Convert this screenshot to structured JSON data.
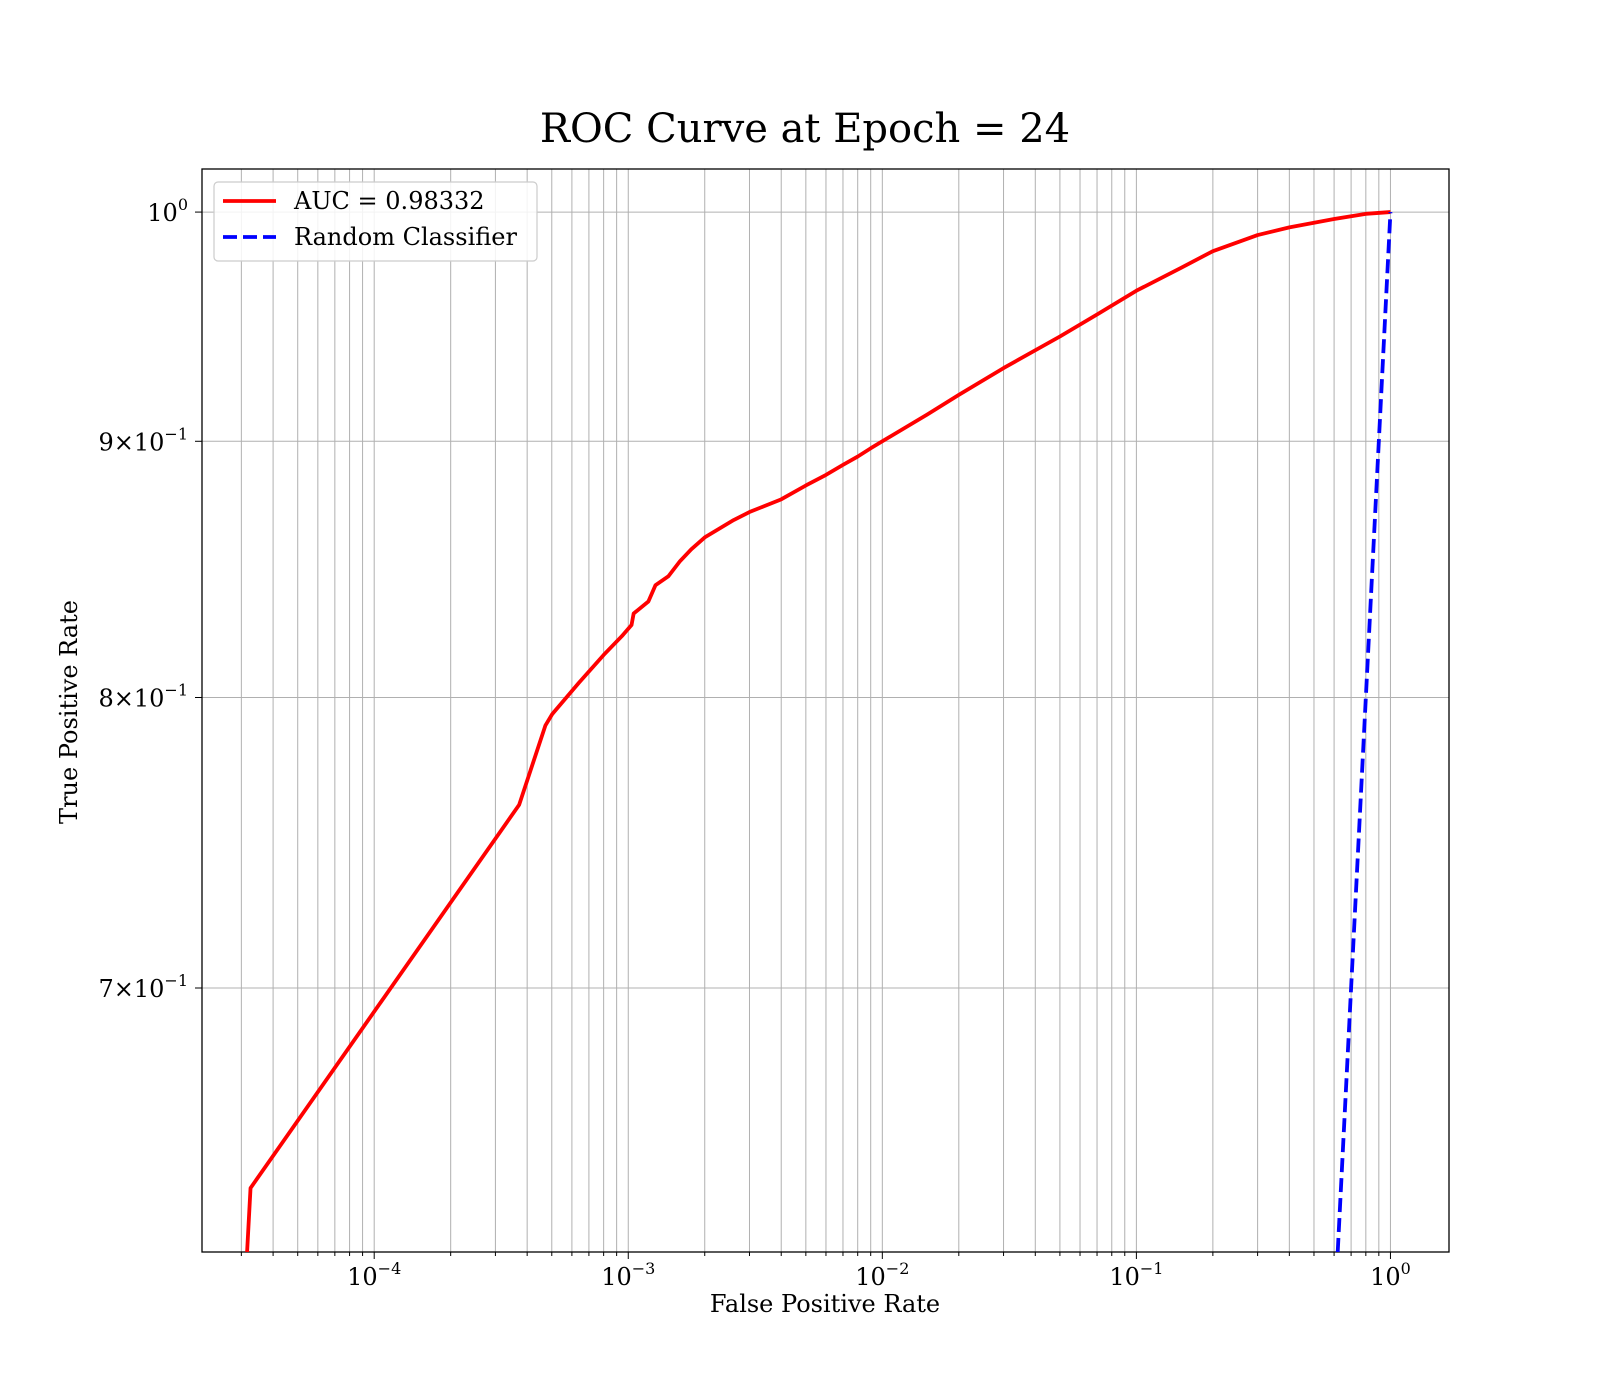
{
  "chart_data": {
    "type": "line",
    "title": "ROC Curve at Epoch = 24",
    "xlabel": "False Positive Rate",
    "ylabel": "True Positive Rate",
    "xscale": "log",
    "yscale": "log",
    "xlim": [
      2.1e-05,
      1.7
    ],
    "ylim": [
      0.62,
      1.02
    ],
    "grid": "both (major and minor)",
    "legend_position": "upper-left",
    "x_ticks": [
      {
        "value": 0.0001,
        "mantissa": "",
        "base": "10",
        "exp": "−4"
      },
      {
        "value": 0.001,
        "mantissa": "",
        "base": "10",
        "exp": "−3"
      },
      {
        "value": 0.01,
        "mantissa": "",
        "base": "10",
        "exp": "−2"
      },
      {
        "value": 0.1,
        "mantissa": "",
        "base": "10",
        "exp": "−1"
      },
      {
        "value": 1,
        "mantissa": "",
        "base": "10",
        "exp": "0"
      }
    ],
    "y_ticks": [
      {
        "value": 1.0,
        "mantissa": "",
        "base": "10",
        "exp": "0"
      },
      {
        "value": 0.9,
        "mantissa": "9×",
        "base": "10",
        "exp": "−1"
      },
      {
        "value": 0.8,
        "mantissa": "8×",
        "base": "10",
        "exp": "−1"
      },
      {
        "value": 0.7,
        "mantissa": "7×",
        "base": "10",
        "exp": "−1"
      }
    ],
    "series": [
      {
        "name": "AUC = 0.98332",
        "color": "#ff0000",
        "style": "solid",
        "x": [
          3.16e-05,
          3.26e-05,
          0.000372,
          0.000472,
          0.000502,
          0.00064,
          0.0008,
          0.000944,
          0.00103,
          0.00105,
          0.0012,
          0.00128,
          0.00144,
          0.0016,
          0.00177,
          0.002,
          0.0026,
          0.003,
          0.004,
          0.005,
          0.006,
          0.007,
          0.008,
          0.009,
          0.01,
          0.015,
          0.02,
          0.03,
          0.05,
          0.07,
          0.1,
          0.15,
          0.2,
          0.3,
          0.4,
          0.6,
          0.8,
          1.0
        ],
        "y": [
          0.62,
          0.6385,
          0.7615,
          0.7898,
          0.7939,
          0.8055,
          0.8158,
          0.8229,
          0.8271,
          0.8315,
          0.8361,
          0.8424,
          0.8459,
          0.8518,
          0.8564,
          0.8611,
          0.868,
          0.8712,
          0.8763,
          0.8819,
          0.8862,
          0.8903,
          0.8937,
          0.8971,
          0.9,
          0.9111,
          0.9194,
          0.9308,
          0.9444,
          0.954,
          0.9645,
          0.9747,
          0.9822,
          0.9895,
          0.993,
          0.9968,
          0.9992,
          1.0
        ]
      },
      {
        "name": "Random Classifier",
        "color": "#0000ff",
        "style": "dashed",
        "x": [
          0.62,
          1.0
        ],
        "y": [
          0.62,
          1.0
        ]
      }
    ]
  }
}
